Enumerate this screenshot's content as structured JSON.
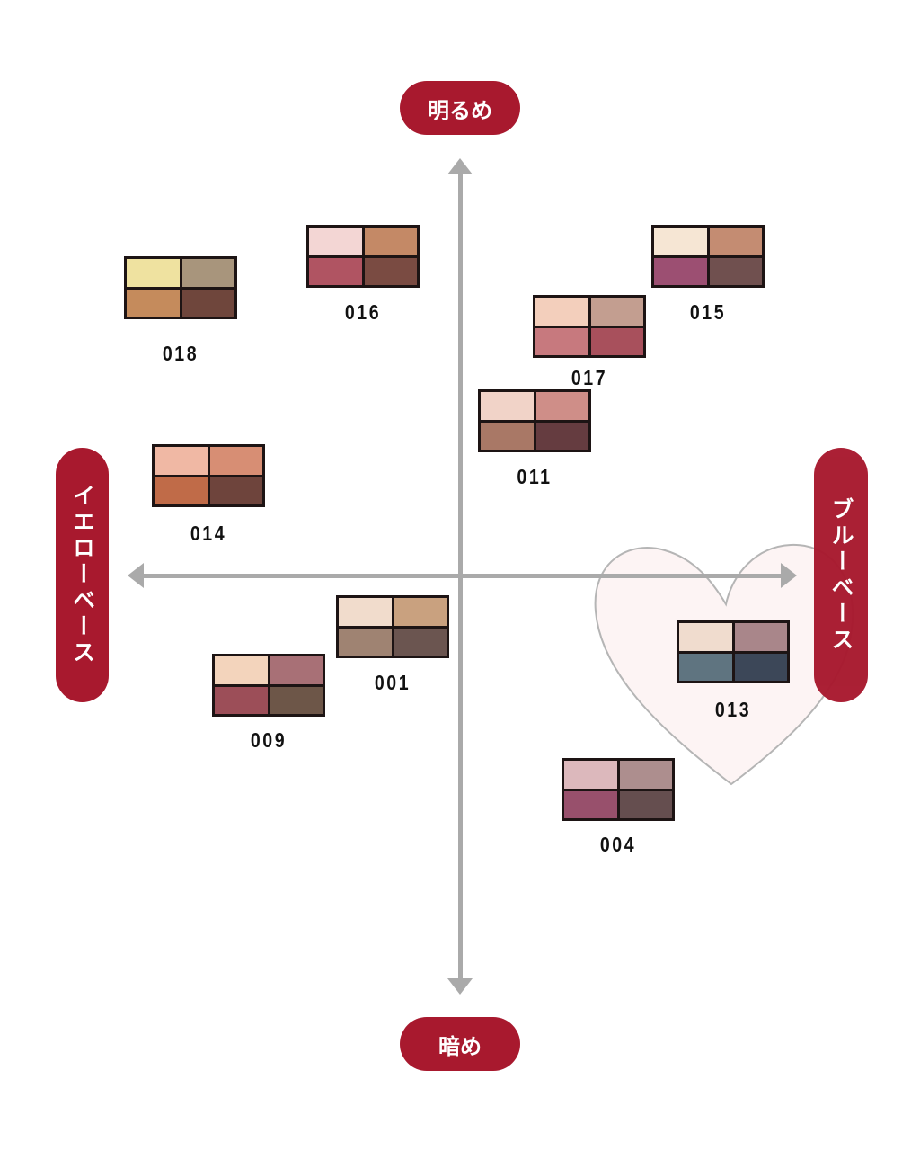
{
  "axes": {
    "top": "明るめ",
    "bottom": "暗め",
    "left": "イエローベース",
    "right": "ブルーベース",
    "accent_color": "#a8192e",
    "axis_color": "#aaaaaa"
  },
  "highlight": {
    "shape": "heart-icon",
    "fill": "#fdf4f4",
    "stroke": "#b5b5b5",
    "target": "013"
  },
  "palettes": [
    {
      "id": "018",
      "colors": [
        "#efe2a0",
        "#a8957c",
        "#c58b5c",
        "#6f463c"
      ]
    },
    {
      "id": "016",
      "colors": [
        "#f3d6d4",
        "#c48966",
        "#b05462",
        "#7a4b42"
      ]
    },
    {
      "id": "015",
      "colors": [
        "#f6e6d4",
        "#c48c72",
        "#9c4f72",
        "#70504f"
      ]
    },
    {
      "id": "017",
      "colors": [
        "#f3cfbc",
        "#c39e90",
        "#c7797e",
        "#a8505c"
      ]
    },
    {
      "id": "011",
      "colors": [
        "#f1d3c8",
        "#cf8e88",
        "#a97866",
        "#653c40"
      ]
    },
    {
      "id": "014",
      "colors": [
        "#f0b8a4",
        "#d78e74",
        "#c06b48",
        "#6e443c"
      ]
    },
    {
      "id": "001",
      "colors": [
        "#f1dccc",
        "#c9a17f",
        "#9f8372",
        "#6b5550"
      ]
    },
    {
      "id": "009",
      "colors": [
        "#f3d4bc",
        "#a87076",
        "#9c4e58",
        "#6d5648"
      ]
    },
    {
      "id": "013",
      "colors": [
        "#f0dcce",
        "#a9868a",
        "#5f7480",
        "#3c4758"
      ]
    },
    {
      "id": "004",
      "colors": [
        "#dcb8bc",
        "#ad8e8e",
        "#98506c",
        "#654e4f"
      ]
    }
  ]
}
